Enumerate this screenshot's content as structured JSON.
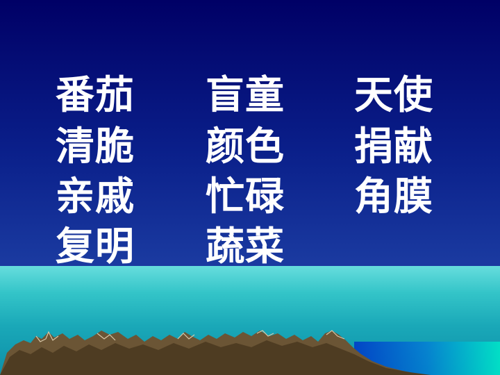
{
  "columns": [
    {
      "words": [
        "番茄",
        "清脆",
        "亲戚",
        "复明"
      ]
    },
    {
      "words": [
        "盲童",
        "颜色",
        "忙碌",
        "蔬菜"
      ]
    },
    {
      "words": [
        "天使",
        "捐献",
        "角膜"
      ]
    }
  ],
  "colors": {
    "sky_top": "#000066",
    "sky_bottom": "#2248b0",
    "sea": "#33c4c8",
    "mountains": "#6b5535",
    "text": "#ffffff"
  }
}
